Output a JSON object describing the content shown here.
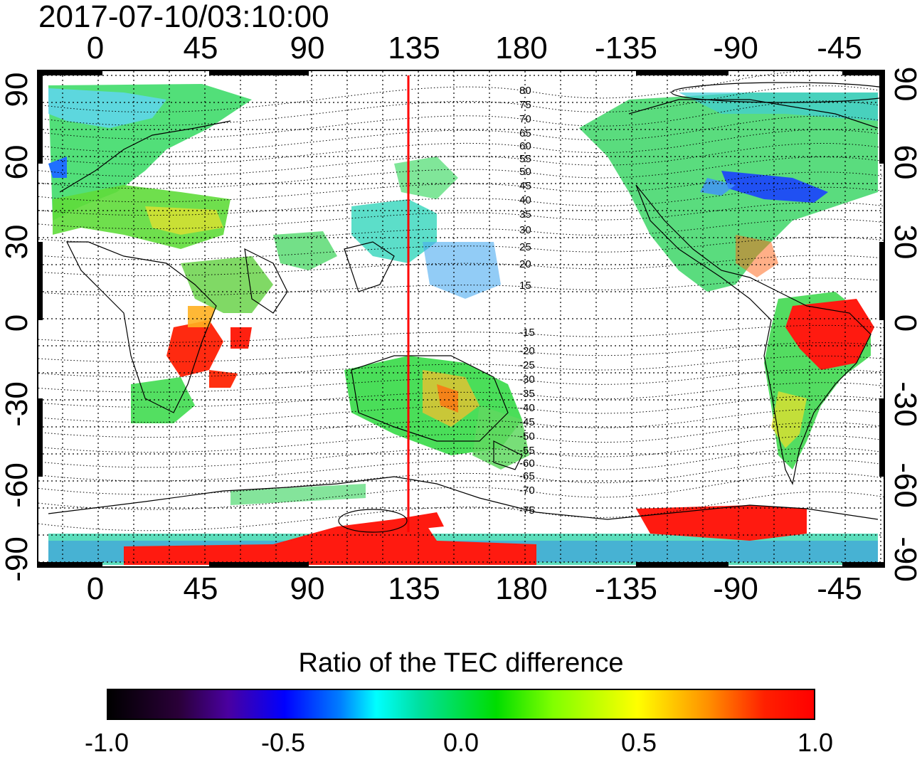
{
  "timestamp": "2017-07-10/03:10:00",
  "map": {
    "top_lon_labels": [
      "0",
      "45",
      "90",
      "135",
      "180",
      "-135",
      "-90",
      "-45"
    ],
    "bottom_lon_labels": [
      "0",
      "45",
      "90",
      "135",
      "180",
      "-135",
      "-90",
      "-45"
    ],
    "left_lat_labels": [
      "90",
      "60",
      "30",
      "0",
      "-30",
      "-60",
      "-90"
    ],
    "right_lat_labels": [
      "90",
      "60",
      "30",
      "0",
      "-30",
      "-60",
      "-90"
    ],
    "magnetic_lat_labels_north": [
      "80",
      "75",
      "70",
      "65",
      "60",
      "55",
      "50",
      "45",
      "40",
      "35",
      "30",
      "25",
      "20",
      "15"
    ],
    "magnetic_lat_labels_south": [
      "-15",
      "-20",
      "-25",
      "-30",
      "-35",
      "-40",
      "-45",
      "-50",
      "-55",
      "-60",
      "-65",
      "-70",
      "-75"
    ],
    "marker_longitude": 132,
    "marker_color": "#ff0000"
  },
  "colorbar": {
    "title": "Ratio of the TEC difference",
    "tick_labels": [
      "-1.0",
      "-0.5",
      "0.0",
      "0.5",
      "1.0"
    ],
    "range": [
      -1.0,
      1.0
    ]
  }
}
